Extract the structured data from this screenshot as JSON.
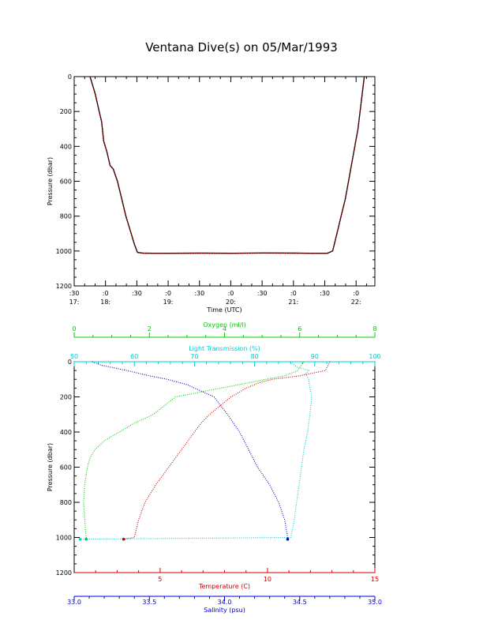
{
  "title": "Ventana Dive(s) on 05/Mar/1993",
  "chart_data": [
    {
      "type": "line",
      "xlabel": "Time (UTC)",
      "ylabel": "Pressure (dbar)",
      "ylim": [
        1200,
        0
      ],
      "xlim": [
        "17:30",
        "22:15"
      ],
      "yticks": [
        "0",
        "200",
        "400",
        "600",
        "800",
        "1000",
        "1200"
      ],
      "xticks": [
        {
          "top": ":30",
          "bottom": "17:"
        },
        {
          "top": ":0",
          "bottom": "18:"
        },
        {
          "top": ":30",
          "bottom": ""
        },
        {
          "top": ":0",
          "bottom": "19:"
        },
        {
          "top": ":30",
          "bottom": ""
        },
        {
          "top": ":0",
          "bottom": "20:"
        },
        {
          "top": ":30",
          "bottom": ""
        },
        {
          "top": ":0",
          "bottom": "21:"
        },
        {
          "top": ":30",
          "bottom": ""
        },
        {
          "top": ":0",
          "bottom": "22:"
        }
      ],
      "series": [
        {
          "color": "#cc0000",
          "x": [
            "17:45",
            "17:50",
            "17:53",
            "17:56",
            "17:58",
            "18:01",
            "18:04",
            "18:07",
            "18:11",
            "18:15",
            "18:19",
            "18:23",
            "18:27",
            "18:30",
            "18:35",
            "18:45",
            "19:00",
            "19:30",
            "20:00",
            "20:30",
            "21:00",
            "21:15",
            "21:30",
            "21:35",
            "21:39",
            "21:43",
            "21:47",
            "21:50",
            "21:53",
            "21:56",
            "21:59",
            "22:02",
            "22:05"
          ],
          "y": [
            0,
            100,
            180,
            260,
            370,
            430,
            510,
            530,
            600,
            700,
            800,
            880,
            960,
            1008,
            1012,
            1013,
            1013,
            1012,
            1013,
            1011,
            1012,
            1013,
            1013,
            1000,
            900,
            800,
            700,
            600,
            500,
            400,
            300,
            150,
            0
          ]
        }
      ]
    },
    {
      "type": "scatter",
      "ylabel": "Pressure (dbar)",
      "ylim": [
        1200,
        0
      ],
      "yticks": [
        "0",
        "200",
        "400",
        "600",
        "800",
        "1000",
        "1200"
      ],
      "axes": {
        "oxygen": {
          "label": "Oxygen (ml/l)",
          "range": [
            0,
            8
          ],
          "ticks": [
            "0",
            "2",
            "4",
            "6",
            "8"
          ],
          "position": "top",
          "color": "#00cc00"
        },
        "transmission": {
          "label": "Light Transmission (%)",
          "range": [
            50,
            100
          ],
          "ticks": [
            "50",
            "60",
            "70",
            "80",
            "90",
            "100"
          ],
          "position": "top",
          "color": "#00cccc"
        },
        "temperature": {
          "label": "Temperature (C)",
          "range": [
            1,
            15
          ],
          "ticks": [
            "5",
            "10",
            "15"
          ],
          "position": "bottom",
          "color": "#cc0000"
        },
        "salinity": {
          "label": "Salinity (psu)",
          "range": [
            33.0,
            35.0
          ],
          "ticks": [
            "33.0",
            "33.5",
            "34.0",
            "34.5",
            "35.0"
          ],
          "position": "bottom",
          "color": "#0000cc"
        }
      },
      "series": [
        {
          "axis": "oxygen",
          "color": "#00cc00",
          "depth": [
            0,
            50,
            80,
            100,
            130,
            150,
            200,
            250,
            300,
            350,
            400,
            450,
            500,
            550,
            600,
            700,
            800,
            900,
            1000,
            1010
          ],
          "values": [
            6.1,
            5.95,
            5.6,
            5.1,
            4.4,
            3.9,
            2.7,
            2.4,
            2.1,
            1.6,
            1.2,
            0.8,
            0.55,
            0.42,
            0.35,
            0.28,
            0.25,
            0.28,
            0.32,
            0.32
          ]
        },
        {
          "axis": "transmission",
          "color": "#00cccc",
          "depth": [
            0,
            30,
            50,
            70,
            100,
            150,
            200,
            300,
            400,
            500,
            600,
            700,
            800,
            900,
            950,
            1000,
            1010
          ],
          "values": [
            86,
            87,
            89,
            88.5,
            89,
            89.2,
            89.5,
            89.2,
            88.8,
            88.2,
            87.8,
            87.4,
            87,
            86.6,
            86.3,
            86,
            51
          ]
        },
        {
          "axis": "temperature",
          "color": "#cc0000",
          "depth": [
            0,
            50,
            80,
            100,
            120,
            150,
            180,
            200,
            250,
            300,
            350,
            400,
            450,
            500,
            550,
            600,
            700,
            800,
            900,
            1000,
            1010
          ],
          "values": [
            12.9,
            12.7,
            11.5,
            10.2,
            9.6,
            9.0,
            8.6,
            8.3,
            7.8,
            7.3,
            6.9,
            6.6,
            6.3,
            6.0,
            5.7,
            5.4,
            4.8,
            4.3,
            4.0,
            3.8,
            3.3
          ]
        },
        {
          "axis": "salinity",
          "color": "#0000cc",
          "depth": [
            0,
            20,
            50,
            80,
            100,
            130,
            150,
            180,
            200,
            300,
            400,
            500,
            600,
            700,
            800,
            900,
            1000,
            1010
          ],
          "values": [
            33.12,
            33.18,
            33.35,
            33.5,
            33.62,
            33.75,
            33.8,
            33.88,
            33.93,
            34.02,
            34.1,
            34.16,
            34.22,
            34.3,
            34.36,
            34.4,
            34.42,
            34.42
          ]
        }
      ]
    }
  ]
}
